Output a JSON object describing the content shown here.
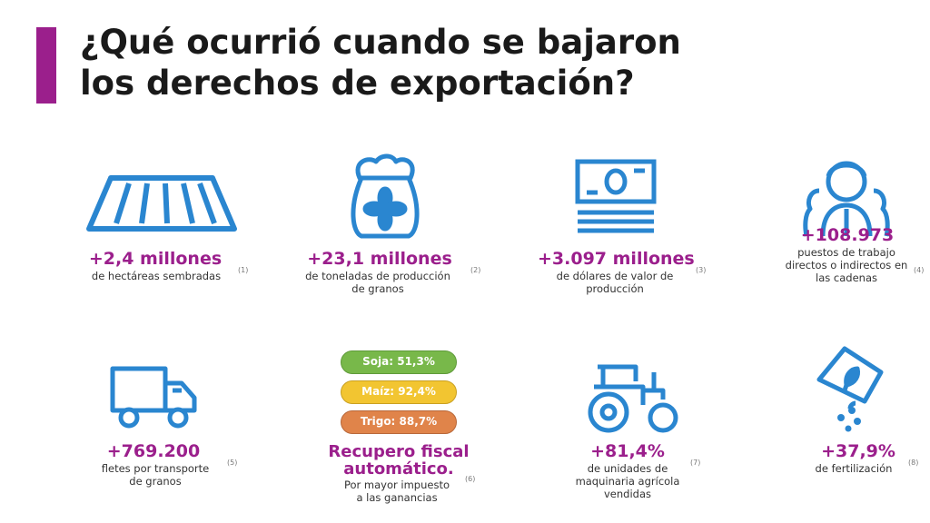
{
  "header": {
    "title_line1": "¿Qué ocurrió cuando se bajaron",
    "title_line2": "los derechos de exportación?",
    "accent_color": "#9b1f8c"
  },
  "colors": {
    "icon": "#2a86d0",
    "value": "#9b1f8c"
  },
  "items": [
    {
      "icon": "field-icon",
      "value": "+2,4 millones",
      "desc_lines": [
        "de hectáreas sembradas"
      ],
      "note": "(1)"
    },
    {
      "icon": "grain-sack-icon",
      "value": "+23,1 millones",
      "desc_lines": [
        "de toneladas de producción",
        "de granos"
      ],
      "note": "(2)"
    },
    {
      "icon": "banknote-icon",
      "value": "+3.097 millones",
      "desc_lines": [
        "de dólares de valor de",
        "producción"
      ],
      "note": "(3)"
    },
    {
      "icon": "workers-icon",
      "value": "+108.973",
      "desc_lines": [
        "puestos de trabajo",
        "directos o indirectos en",
        "las cadenas"
      ],
      "note": "(4)"
    },
    {
      "icon": "truck-icon",
      "value": "+769.200",
      "desc_lines": [
        "fletes por transporte",
        "de granos"
      ],
      "note": "(5)"
    },
    {
      "icon": "tractor-icon",
      "value": "+81,4%",
      "desc_lines": [
        "de unidades de",
        "maquinaria agrícola",
        "vendidas"
      ],
      "note": "(7)"
    },
    {
      "icon": "fertilizer-icon",
      "value": "+37,9%",
      "desc_lines": [
        "de fertilización"
      ],
      "note": "(8)"
    }
  ],
  "fiscal": {
    "pills": [
      {
        "label": "Soja: 51,3%",
        "color": "#78b84a"
      },
      {
        "label": "Maíz: 92,4%",
        "color": "#f2c531"
      },
      {
        "label": "Trigo: 88,7%",
        "color": "#e0844a"
      }
    ],
    "title_line1": "Recupero fiscal",
    "title_line2": "automático.",
    "desc_lines": [
      "Por mayor impuesto",
      "a las ganancias"
    ],
    "note": "(6)"
  }
}
